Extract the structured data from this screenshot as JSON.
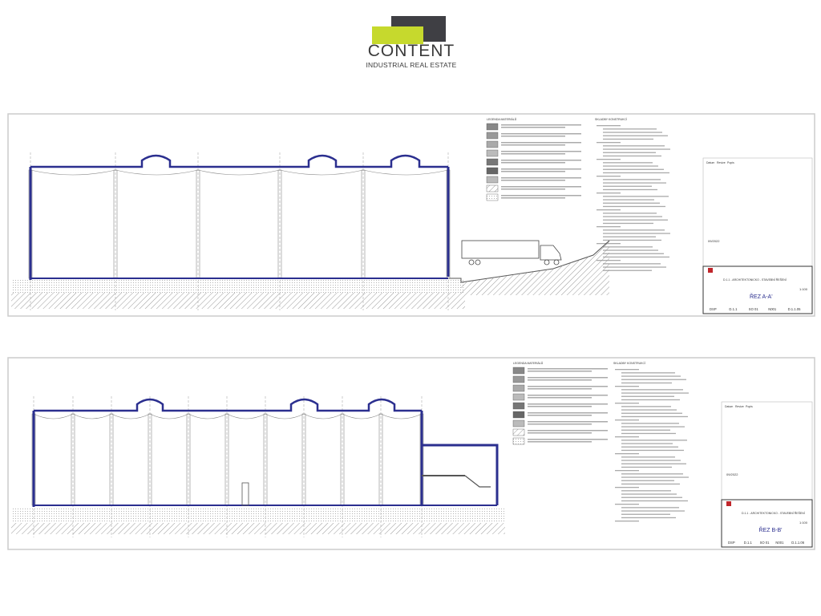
{
  "logo": {
    "word": "CONTENT",
    "subtitle": "INDUSTRIAL REAL ESTATE",
    "colors": {
      "dark": "#3f3f44",
      "lime": "#c6d92d"
    }
  },
  "sheets": [
    {
      "legend_title": "LEGENDA MATERIÁLŮ",
      "notes_title": "SKLADBY KONSTRUKCÍ",
      "title_block": {
        "revision_header": [
          "Datum",
          "Revize",
          "Popis"
        ],
        "date": "09/2022",
        "part": "D.1.1 - ARCHITEKTONICKO - STAVEBNÍ ŘEŠENÍ",
        "drawing_title": "ŘEZ A-A'",
        "scale": "1:100",
        "codes": [
          "DSP",
          "D.1.1",
          "SO 01",
          "N001",
          "D.1.1.05"
        ]
      }
    },
    {
      "legend_title": "LEGENDA MATERIÁLŮ",
      "notes_title": "SKLADBY KONSTRUKCÍ",
      "title_block": {
        "revision_header": [
          "Datum",
          "Revize",
          "Popis"
        ],
        "date": "09/2022",
        "part": "D.1.1 - ARCHITEKTONICKO - STAVEBNÍ ŘEŠENÍ",
        "drawing_title": "ŘEZ B-B'",
        "scale": "1:100",
        "codes": [
          "DSP",
          "D.1.1",
          "SO 01",
          "N001",
          "D.1.1.06"
        ]
      }
    }
  ],
  "colors": {
    "structure": "#2b2f8f",
    "line": "#777777",
    "frame": "#cccccc"
  }
}
